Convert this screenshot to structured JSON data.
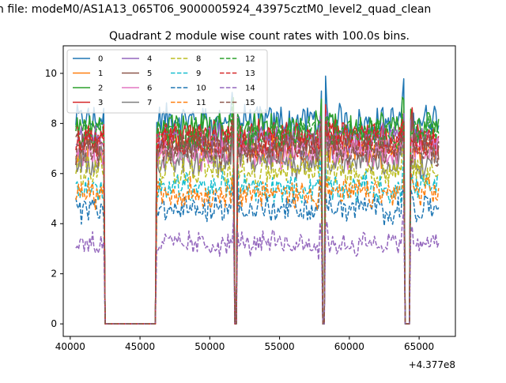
{
  "figure": {
    "suptitle": "n file: modeM0/AS1A13_065T06_9000005924_43975cztM0_level2_quad_clean"
  },
  "chart_data": {
    "type": "line",
    "title": "Quadrant 2 module wise count rates with 100.0s bins.",
    "xlabel": "",
    "ylabel": "",
    "x_offset_label": "+4.377e8",
    "xlim": [
      39500,
      67600
    ],
    "ylim": [
      -0.5,
      11.1
    ],
    "x_ticks": [
      40000,
      45000,
      50000,
      55000,
      60000,
      65000
    ],
    "y_ticks": [
      0,
      2,
      4,
      6,
      8,
      10
    ],
    "x_tick_labels": [
      "40000",
      "45000",
      "50000",
      "55000",
      "60000",
      "65000"
    ],
    "y_tick_labels": [
      "0",
      "2",
      "4",
      "6",
      "8",
      "10"
    ],
    "grid": false,
    "legend": {
      "placement": "top-left",
      "columns": 4
    },
    "x_range": [
      40400,
      66400
    ],
    "bin_seconds": 100,
    "gaps": [
      {
        "start": 42500,
        "end": 46100
      },
      {
        "start": 51750,
        "end": 51900
      },
      {
        "start": 58050,
        "end": 58250
      },
      {
        "start": 63950,
        "end": 64350
      }
    ],
    "series": [
      {
        "name": "0",
        "color": "#1f77b4",
        "dash": "solid",
        "level": 8.1
      },
      {
        "name": "1",
        "color": "#ff7f0e",
        "dash": "solid",
        "level": 7.0
      },
      {
        "name": "2",
        "color": "#2ca02c",
        "dash": "solid",
        "level": 7.8
      },
      {
        "name": "3",
        "color": "#d62728",
        "dash": "solid",
        "level": 7.5
      },
      {
        "name": "4",
        "color": "#9467bd",
        "dash": "solid",
        "level": 7.3
      },
      {
        "name": "5",
        "color": "#8c564b",
        "dash": "solid",
        "level": 7.0
      },
      {
        "name": "6",
        "color": "#e377c2",
        "dash": "solid",
        "level": 6.8
      },
      {
        "name": "7",
        "color": "#7f7f7f",
        "dash": "solid",
        "level": 6.5
      },
      {
        "name": "8",
        "color": "#bcbd22",
        "dash": "dashed",
        "level": 6.1
      },
      {
        "name": "9",
        "color": "#17becf",
        "dash": "dashed",
        "level": 5.4
      },
      {
        "name": "10",
        "color": "#1f77b4",
        "dash": "dashed",
        "level": 4.6
      },
      {
        "name": "11",
        "color": "#ff7f0e",
        "dash": "dashed",
        "level": 5.2
      },
      {
        "name": "12",
        "color": "#2ca02c",
        "dash": "dashed",
        "level": 7.6
      },
      {
        "name": "13",
        "color": "#d62728",
        "dash": "dashed",
        "level": 7.3
      },
      {
        "name": "14",
        "color": "#9467bd",
        "dash": "dashed",
        "level": 3.2
      },
      {
        "name": "15",
        "color": "#8c564b",
        "dash": "dashed",
        "level": 6.9
      }
    ]
  }
}
